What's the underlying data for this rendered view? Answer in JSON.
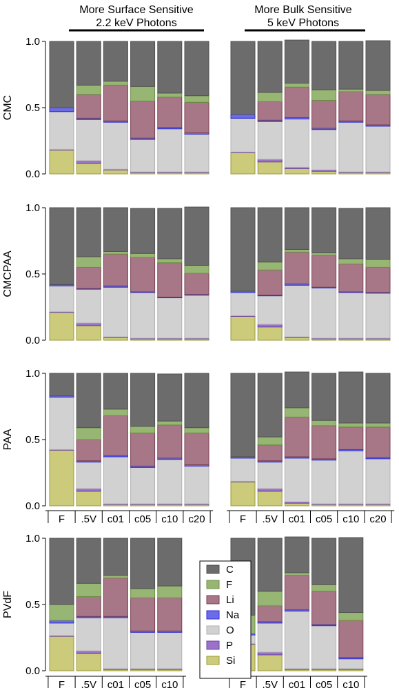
{
  "header": {
    "left_line1": "More Surface Sensitive",
    "left_line2": "2.2 keV Photons",
    "right_line1": "More Bulk Sensitive",
    "right_line2": "5 keV Photons"
  },
  "colors": {
    "Si": "#cbcb7b",
    "P": "#9a72c9",
    "O": "#d1d1d1",
    "Na": "#6c6ce8",
    "Li": "#a87787",
    "F": "#97b673",
    "C": "#6c6c6c"
  },
  "chart_data": {
    "type": "bar",
    "stacked": true,
    "ylim": [
      0,
      1.0
    ],
    "yticks": [
      "0.0",
      "0.5",
      "1.0"
    ],
    "legend": {
      "placement": "bottom-center",
      "entries": [
        "C",
        "F",
        "Li",
        "Na",
        "O",
        "P",
        "Si"
      ]
    },
    "stack_order": [
      "Si",
      "P",
      "O",
      "Na",
      "Li",
      "F",
      "C"
    ],
    "x_categories_6": [
      "F",
      ".5V",
      "c01",
      "c05",
      "c10",
      "c20"
    ],
    "x_categories_5": [
      "F",
      ".5V",
      "c01",
      "c05",
      "c10"
    ],
    "rows": [
      {
        "ylabel": "CMC",
        "panels": [
          {
            "photons": "2.2 keV",
            "categories": [
              "F",
              ".5V",
              "c01",
              "c05",
              "c10",
              "c20"
            ],
            "series": [
              {
                "name": "Si",
                "values": [
                  0.18,
                  0.08,
                  0.03,
                  0.01,
                  0.01,
                  0.01
                ]
              },
              {
                "name": "P",
                "values": [
                  0.005,
                  0.02,
                  0.005,
                  0.005,
                  0.005,
                  0.005
                ]
              },
              {
                "name": "O",
                "values": [
                  0.285,
                  0.31,
                  0.355,
                  0.245,
                  0.325,
                  0.285
                ]
              },
              {
                "name": "Na",
                "values": [
                  0.03,
                  0.01,
                  0.01,
                  0.01,
                  0.01,
                  0.01
                ]
              },
              {
                "name": "Li",
                "values": [
                  0.0,
                  0.18,
                  0.27,
                  0.28,
                  0.23,
                  0.23
                ]
              },
              {
                "name": "F",
                "values": [
                  0.0,
                  0.07,
                  0.03,
                  0.11,
                  0.03,
                  0.05
                ]
              },
              {
                "name": "C",
                "values": [
                  0.5,
                  0.33,
                  0.3,
                  0.34,
                  0.39,
                  0.41
                ]
              }
            ]
          },
          {
            "photons": "5 keV",
            "categories": [
              "F",
              ".5V",
              "c01",
              "c05",
              "c10",
              "c20"
            ],
            "series": [
              {
                "name": "Si",
                "values": [
                  0.16,
                  0.09,
                  0.04,
                  0.02,
                  0.01,
                  0.01
                ]
              },
              {
                "name": "P",
                "values": [
                  0.005,
                  0.02,
                  0.01,
                  0.01,
                  0.005,
                  0.005
                ]
              },
              {
                "name": "O",
                "values": [
                  0.255,
                  0.285,
                  0.365,
                  0.305,
                  0.375,
                  0.345
                ]
              },
              {
                "name": "Na",
                "values": [
                  0.03,
                  0.01,
                  0.01,
                  0.01,
                  0.01,
                  0.01
                ]
              },
              {
                "name": "Li",
                "values": [
                  0.0,
                  0.14,
                  0.23,
                  0.21,
                  0.22,
                  0.23
                ]
              },
              {
                "name": "F",
                "values": [
                  0.0,
                  0.07,
                  0.03,
                  0.08,
                  0.02,
                  0.03
                ]
              },
              {
                "name": "C",
                "values": [
                  0.55,
                  0.385,
                  0.325,
                  0.365,
                  0.36,
                  0.375
                ]
              }
            ]
          }
        ]
      },
      {
        "ylabel": "CMCPAA",
        "panels": [
          {
            "photons": "2.2 keV",
            "categories": [
              "F",
              ".5V",
              "c01",
              "c05",
              "c10",
              "c20"
            ],
            "series": [
              {
                "name": "Si",
                "values": [
                  0.21,
                  0.11,
                  0.02,
                  0.01,
                  0.01,
                  0.01
                ]
              },
              {
                "name": "P",
                "values": [
                  0.005,
                  0.02,
                  0.005,
                  0.005,
                  0.005,
                  0.005
                ]
              },
              {
                "name": "O",
                "values": [
                  0.195,
                  0.255,
                  0.375,
                  0.345,
                  0.305,
                  0.325
                ]
              },
              {
                "name": "Na",
                "values": [
                  0.01,
                  0.005,
                  0.01,
                  0.005,
                  0.005,
                  0.005
                ]
              },
              {
                "name": "Li",
                "values": [
                  0.0,
                  0.16,
                  0.24,
                  0.26,
                  0.26,
                  0.16
                ]
              },
              {
                "name": "F",
                "values": [
                  0.0,
                  0.08,
                  0.02,
                  0.03,
                  0.03,
                  0.06
                ]
              },
              {
                "name": "C",
                "values": [
                  0.58,
                  0.37,
                  0.33,
                  0.34,
                  0.38,
                  0.44
                ]
              }
            ]
          },
          {
            "photons": "5 keV",
            "categories": [
              "F",
              ".5V",
              "c01",
              "c05",
              "c10",
              "c20"
            ],
            "series": [
              {
                "name": "Si",
                "values": [
                  0.18,
                  0.1,
                  0.02,
                  0.01,
                  0.01,
                  0.01
                ]
              },
              {
                "name": "P",
                "values": [
                  0.005,
                  0.02,
                  0.005,
                  0.005,
                  0.005,
                  0.005
                ]
              },
              {
                "name": "O",
                "values": [
                  0.175,
                  0.215,
                  0.39,
                  0.38,
                  0.345,
                  0.34
                ]
              },
              {
                "name": "Na",
                "values": [
                  0.01,
                  0.005,
                  0.01,
                  0.005,
                  0.005,
                  0.005
                ]
              },
              {
                "name": "Li",
                "values": [
                  0.0,
                  0.19,
                  0.24,
                  0.24,
                  0.21,
                  0.19
                ]
              },
              {
                "name": "F",
                "values": [
                  0.0,
                  0.06,
                  0.02,
                  0.02,
                  0.04,
                  0.06
                ]
              },
              {
                "name": "C",
                "values": [
                  0.63,
                  0.41,
                  0.315,
                  0.34,
                  0.38,
                  0.39
                ]
              }
            ]
          }
        ]
      },
      {
        "ylabel": "PAA",
        "panels": [
          {
            "photons": "2.2 keV",
            "categories": [
              "F",
              ".5V",
              "c01",
              "c05",
              "c10",
              "c20"
            ],
            "series": [
              {
                "name": "Si",
                "values": [
                  0.42,
                  0.11,
                  0.01,
                  0.01,
                  0.01,
                  0.01
                ]
              },
              {
                "name": "P",
                "values": [
                  0.005,
                  0.02,
                  0.005,
                  0.005,
                  0.005,
                  0.005
                ]
              },
              {
                "name": "O",
                "values": [
                  0.395,
                  0.2,
                  0.355,
                  0.275,
                  0.335,
                  0.285
                ]
              },
              {
                "name": "Na",
                "values": [
                  0.01,
                  0.01,
                  0.01,
                  0.01,
                  0.01,
                  0.01
                ]
              },
              {
                "name": "Li",
                "values": [
                  0.0,
                  0.16,
                  0.3,
                  0.25,
                  0.25,
                  0.24
                ]
              },
              {
                "name": "F",
                "values": [
                  0.0,
                  0.09,
                  0.05,
                  0.05,
                  0.03,
                  0.04
                ]
              },
              {
                "name": "C",
                "values": [
                  0.17,
                  0.41,
                  0.27,
                  0.4,
                  0.355,
                  0.41
                ]
              }
            ]
          },
          {
            "photons": "5 keV",
            "categories": [
              "F",
              ".5V",
              "c01",
              "c05",
              "c10",
              "c20"
            ],
            "series": [
              {
                "name": "Si",
                "values": [
                  0.18,
                  0.11,
                  0.02,
                  0.01,
                  0.01,
                  0.01
                ]
              },
              {
                "name": "P",
                "values": [
                  0.005,
                  0.02,
                  0.01,
                  0.005,
                  0.005,
                  0.005
                ]
              },
              {
                "name": "O",
                "values": [
                  0.175,
                  0.2,
                  0.33,
                  0.33,
                  0.4,
                  0.34
                ]
              },
              {
                "name": "Na",
                "values": [
                  0.01,
                  0.01,
                  0.01,
                  0.01,
                  0.01,
                  0.01
                ]
              },
              {
                "name": "Li",
                "values": [
                  0.0,
                  0.12,
                  0.3,
                  0.25,
                  0.17,
                  0.23
                ]
              },
              {
                "name": "F",
                "values": [
                  0.0,
                  0.06,
                  0.07,
                  0.04,
                  0.03,
                  0.03
                ]
              },
              {
                "name": "C",
                "values": [
                  0.63,
                  0.48,
                  0.27,
                  0.355,
                  0.385,
                  0.375
                ]
              }
            ]
          }
        ]
      },
      {
        "ylabel": "PVdF",
        "panels": [
          {
            "photons": "2.2 keV",
            "categories": [
              "F",
              ".5V",
              "c01",
              "c05",
              "c10"
            ],
            "series": [
              {
                "name": "Si",
                "values": [
                  0.26,
                  0.13,
                  0.01,
                  0.01,
                  0.01
                ]
              },
              {
                "name": "P",
                "values": [
                  0.005,
                  0.02,
                  0.005,
                  0.005,
                  0.005
                ]
              },
              {
                "name": "O",
                "values": [
                  0.095,
                  0.25,
                  0.385,
                  0.275,
                  0.275
                ]
              },
              {
                "name": "Na",
                "values": [
                  0.02,
                  0.01,
                  0.01,
                  0.01,
                  0.01
                ]
              },
              {
                "name": "Li",
                "values": [
                  0.0,
                  0.15,
                  0.29,
                  0.25,
                  0.25
                ]
              },
              {
                "name": "F",
                "values": [
                  0.12,
                  0.1,
                  0.02,
                  0.07,
                  0.09
                ]
              },
              {
                "name": "C",
                "values": [
                  0.5,
                  0.34,
                  0.28,
                  0.38,
                  0.36
                ]
              }
            ]
          },
          {
            "photons": "5 keV",
            "categories": [
              "F",
              ".5V",
              "c01",
              "c05",
              "c10"
            ],
            "series": [
              {
                "name": "Si",
                "values": [
                  0.2,
                  0.12,
                  0.01,
                  0.01,
                  0.01
                ]
              },
              {
                "name": "P",
                "values": [
                  0.005,
                  0.02,
                  0.005,
                  0.005,
                  0.005
                ]
              },
              {
                "name": "O",
                "values": [
                  0.065,
                  0.22,
                  0.435,
                  0.325,
                  0.075
                ]
              },
              {
                "name": "Na",
                "values": [
                  0.01,
                  0.01,
                  0.01,
                  0.01,
                  0.01
                ]
              },
              {
                "name": "Li",
                "values": [
                  0.0,
                  0.12,
                  0.26,
                  0.25,
                  0.28
                ]
              },
              {
                "name": "F",
                "values": [
                  0.14,
                  0.11,
                  0.02,
                  0.05,
                  0.06
                ]
              },
              {
                "name": "C",
                "values": [
                  0.58,
                  0.4,
                  0.27,
                  0.35,
                  0.565
                ]
              }
            ]
          }
        ]
      }
    ]
  }
}
